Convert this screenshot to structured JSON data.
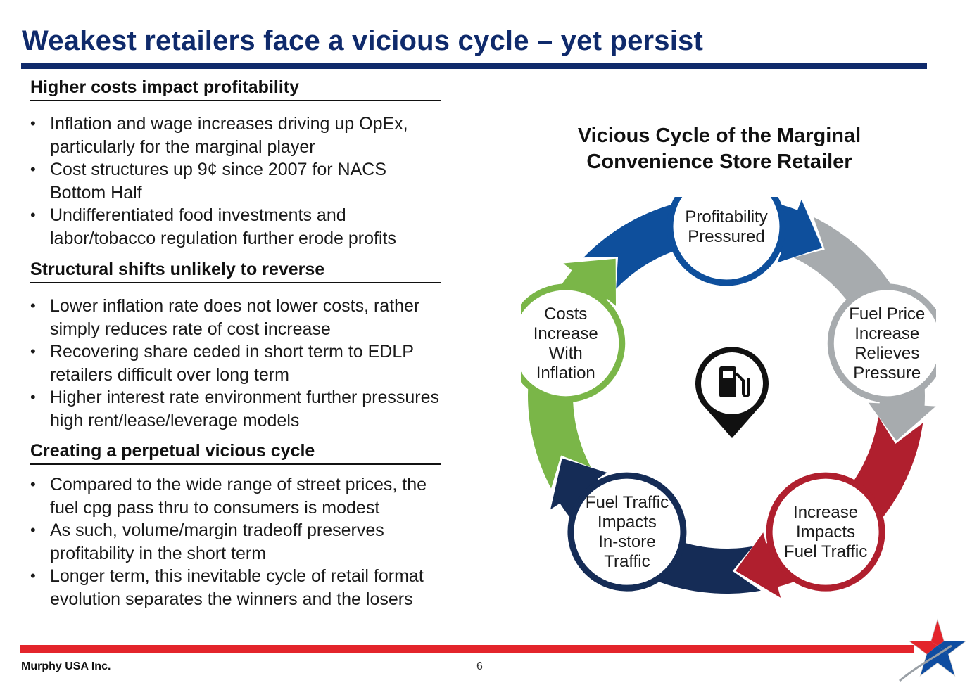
{
  "title": "Weakest retailers face a vicious cycle – yet persist",
  "sections": [
    {
      "heading": "Higher costs impact profitability",
      "bullets": [
        "Inflation and wage increases driving up OpEx, particularly for the marginal player",
        "Cost structures up 9¢ since 2007 for NACS Bottom Half",
        "Undifferentiated food investments and labor/tobacco regulation further erode profits"
      ]
    },
    {
      "heading": "Structural shifts unlikely to reverse",
      "bullets": [
        "Lower inflation rate does not lower costs, rather simply reduces rate of cost increase",
        "Recovering share ceded in short term to EDLP retailers difficult over long term",
        "Higher interest rate environment further pressures high rent/lease/leverage models"
      ]
    },
    {
      "heading": "Creating a perpetual vicious cycle",
      "bullets": [
        "Compared to the wide range of street prices, the fuel cpg pass thru to consumers is modest",
        "As such, volume/margin tradeoff preserves profitability in the short term",
        "Longer term, this inevitable cycle of retail format evolution separates the winners and the losers"
      ]
    }
  ],
  "cycle": {
    "title_line1": "Vicious Cycle of the Marginal",
    "title_line2": "Convenience Store Retailer",
    "nodes": [
      {
        "lines": [
          "Profitability",
          "Pressured"
        ],
        "color": "#0e4f9c"
      },
      {
        "lines": [
          "Fuel Price",
          "Increase",
          "Relieves",
          "Pressure"
        ],
        "color": "#a7abae"
      },
      {
        "lines": [
          "Increase",
          "Impacts",
          "Fuel Traffic"
        ],
        "color": "#b01f2e"
      },
      {
        "lines": [
          "Fuel Traffic",
          "Impacts",
          "In-store",
          "Traffic"
        ],
        "color": "#152c56"
      },
      {
        "lines": [
          "Costs",
          "Increase",
          "With",
          "Inflation"
        ],
        "color": "#7ab648"
      }
    ],
    "center_icon": "fuel-pump-pin-icon"
  },
  "footer": {
    "company": "Murphy USA Inc.",
    "page_number": "6",
    "logo_icon": "murphy-usa-star-icon"
  },
  "colors": {
    "navy": "#0f2a6b",
    "footer_red": "#e3242b"
  }
}
